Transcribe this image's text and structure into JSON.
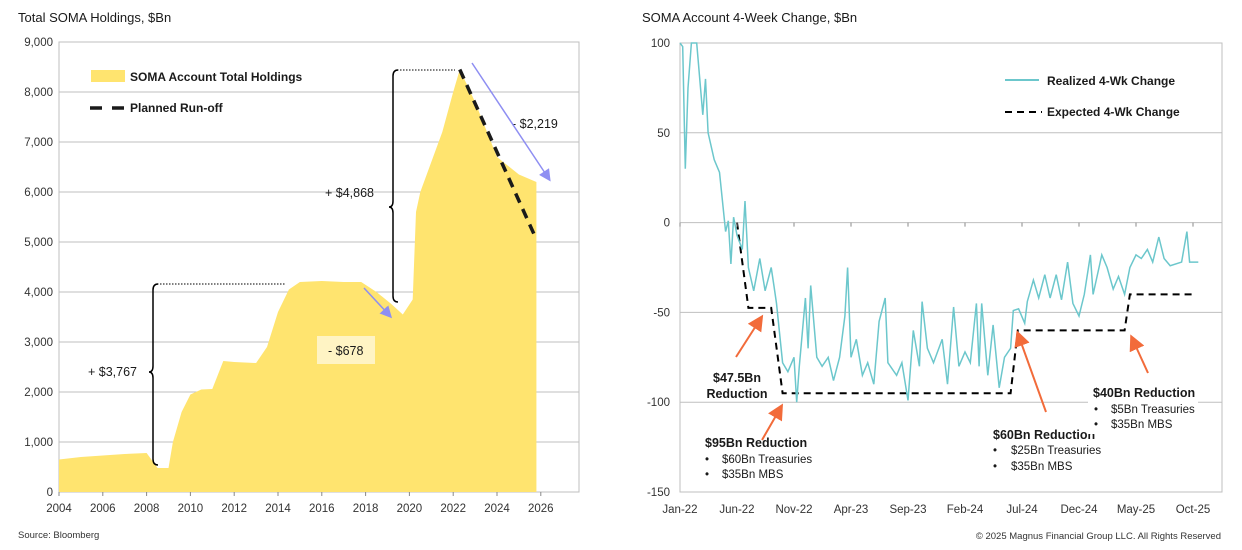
{
  "colors": {
    "holdings_fill": "#FFE46F",
    "realized_line": "#6CC7CC",
    "expected_line": "#000000",
    "runoff_line": "#1a1a1a",
    "purple_arrow": "#8E8EF2",
    "orange_arrow": "#F26B3A",
    "grid": "#BFBFBF"
  },
  "footer": {
    "source": "Source: Bloomberg",
    "copyright": "© 2025 Magnus Financial Group LLC. All Rights Reserved"
  },
  "chart_data": [
    {
      "type": "area",
      "title": "Total SOMA Holdings, $Bn",
      "xlabel": "",
      "ylabel": "",
      "xlim": [
        2004,
        2027.5
      ],
      "ylim": [
        0,
        9000
      ],
      "x_ticks": [
        "2004",
        "2006",
        "2008",
        "2010",
        "2012",
        "2014",
        "2016",
        "2018",
        "2020",
        "2022",
        "2024",
        "2026"
      ],
      "y_ticks": [
        "0",
        "1,000",
        "2,000",
        "3,000",
        "4,000",
        "5,000",
        "6,000",
        "7,000",
        "8,000",
        "9,000"
      ],
      "grid": true,
      "legend_placement": "top-left",
      "series": [
        {
          "name": "SOMA Account Total Holdings",
          "type": "area",
          "x": [
            2004,
            2005,
            2006,
            2007,
            2008,
            2008.3,
            2008.5,
            2009,
            2009.2,
            2009.6,
            2010,
            2010.5,
            2011,
            2011.5,
            2012,
            2013,
            2013.5,
            2014,
            2014.5,
            2015,
            2016,
            2017,
            2017.8,
            2018.5,
            2019.2,
            2019.7,
            2020.15,
            2020.3,
            2020.5,
            2021,
            2021.5,
            2022,
            2022.3,
            2023,
            2024,
            2025,
            2025.8
          ],
          "y": [
            650,
            700,
            730,
            760,
            780,
            600,
            480,
            480,
            1000,
            1600,
            1950,
            2050,
            2060,
            2620,
            2600,
            2580,
            2900,
            3600,
            4050,
            4200,
            4220,
            4200,
            4200,
            4000,
            3750,
            3550,
            3850,
            5600,
            6000,
            6600,
            7200,
            8000,
            8450,
            7800,
            6700,
            6350,
            6200
          ]
        },
        {
          "name": "Planned Run-off",
          "type": "dashed-line",
          "x": [
            2022.3,
            2025.8
          ],
          "y": [
            8450,
            5050
          ]
        }
      ],
      "annotations": [
        {
          "text": "+ $3,767",
          "type": "bracket",
          "from": 480,
          "to": 4220
        },
        {
          "text": "+ $4,868",
          "type": "bracket",
          "from": 3550,
          "to": 8450
        },
        {
          "text": "- $678",
          "type": "arrow"
        },
        {
          "text": "- $2,219",
          "type": "arrow"
        }
      ]
    },
    {
      "type": "line",
      "title": "SOMA Account 4-Week Change, $Bn",
      "xlabel": "",
      "ylabel": "",
      "xlim": [
        "2022-01-01",
        "2025-12-31"
      ],
      "ylim": [
        -150,
        100
      ],
      "x_ticks": [
        "Jan-22",
        "Jun-22",
        "Nov-22",
        "Apr-23",
        "Sep-23",
        "Feb-24",
        "Jul-24",
        "Dec-24",
        "May-25",
        "Oct-25"
      ],
      "y_ticks": [
        "-150",
        "-100",
        "-50",
        "0",
        "50",
        "100"
      ],
      "grid": true,
      "legend_placement": "top-right",
      "series": [
        {
          "name": "Realized 4-Wk Change",
          "x": [
            "2022-01-01",
            "2022-01-08",
            "2022-01-15",
            "2022-01-22",
            "2022-02-01",
            "2022-02-15",
            "2022-03-01",
            "2022-03-08",
            "2022-03-15",
            "2022-04-01",
            "2022-04-15",
            "2022-05-01",
            "2022-05-08",
            "2022-05-15",
            "2022-05-22",
            "2022-06-01",
            "2022-06-15",
            "2022-06-22",
            "2022-07-01",
            "2022-07-15",
            "2022-08-01",
            "2022-08-15",
            "2022-09-01",
            "2022-09-08",
            "2022-09-15",
            "2022-10-01",
            "2022-10-15",
            "2022-11-01",
            "2022-11-08",
            "2022-11-15",
            "2022-12-01",
            "2022-12-08",
            "2022-12-15",
            "2023-01-01",
            "2023-01-15",
            "2023-02-01",
            "2023-02-15",
            "2023-03-01",
            "2023-03-15",
            "2023-03-22",
            "2023-04-01",
            "2023-04-15",
            "2023-05-01",
            "2023-05-15",
            "2023-06-01",
            "2023-06-15",
            "2023-07-01",
            "2023-07-08",
            "2023-08-01",
            "2023-08-15",
            "2023-09-01",
            "2023-09-15",
            "2023-10-01",
            "2023-10-08",
            "2023-10-22",
            "2023-11-08",
            "2023-12-01",
            "2023-12-15",
            "2024-01-01",
            "2024-01-15",
            "2024-02-01",
            "2024-02-15",
            "2024-03-01",
            "2024-03-08",
            "2024-03-15",
            "2024-04-01",
            "2024-04-15",
            "2024-05-01",
            "2024-05-15",
            "2024-06-01",
            "2024-06-08",
            "2024-06-22",
            "2024-07-08",
            "2024-07-15",
            "2024-08-01",
            "2024-08-15",
            "2024-09-01",
            "2024-09-15",
            "2024-10-01",
            "2024-10-15",
            "2024-11-01",
            "2024-11-15",
            "2024-12-01",
            "2024-12-15",
            "2025-01-01",
            "2025-01-08",
            "2025-02-01",
            "2025-02-15",
            "2025-03-01",
            "2025-03-15",
            "2025-04-01",
            "2025-04-15",
            "2025-05-01",
            "2025-05-15",
            "2025-06-01",
            "2025-06-15",
            "2025-07-01",
            "2025-07-15",
            "2025-08-01",
            "2025-09-01",
            "2025-09-15",
            "2025-09-22",
            "2025-10-15"
          ],
          "y": [
            100,
            98,
            30,
            75,
            100,
            100,
            60,
            80,
            50,
            35,
            28,
            -5,
            1,
            -23,
            3,
            -7,
            -15,
            12,
            -25,
            -38,
            -20,
            -38,
            -25,
            -35,
            -45,
            -78,
            -83,
            -75,
            -100,
            -80,
            -42,
            -70,
            -35,
            -75,
            -80,
            -75,
            -88,
            -75,
            -52,
            -25,
            -75,
            -65,
            -85,
            -78,
            -90,
            -55,
            -42,
            -78,
            -85,
            -78,
            -99,
            -60,
            -80,
            -44,
            -70,
            -78,
            -65,
            -90,
            -47,
            -80,
            -72,
            -78,
            -45,
            -80,
            -45,
            -85,
            -57,
            -92,
            -75,
            -70,
            -49,
            -48,
            -56,
            -44,
            -32,
            -42,
            -29,
            -42,
            -29,
            -43,
            -22,
            -45,
            -52,
            -40,
            -18,
            -40,
            -18,
            -25,
            -37,
            -30,
            -40,
            -25,
            -18,
            -20,
            -15,
            -22,
            -8,
            -20,
            -24,
            -22,
            -5,
            -22,
            -22
          ]
        },
        {
          "name": "Expected 4-Wk Change",
          "style": "dashed",
          "x": [
            "2022-06-01",
            "2022-07-01",
            "2022-09-01",
            "2022-10-01",
            "2024-06-01",
            "2024-06-20",
            "2025-04-01",
            "2025-04-15",
            "2025-10-01"
          ],
          "y": [
            0,
            -47.5,
            -47.5,
            -95,
            -95,
            -60,
            -60,
            -40,
            -40
          ]
        }
      ],
      "annotations": [
        {
          "title": "$47.5Bn",
          "title2": "Reduction"
        },
        {
          "title": "$95Bn Reduction",
          "bullets": [
            "$60Bn Treasuries",
            "$35Bn MBS"
          ]
        },
        {
          "title": "$60Bn Reduction",
          "bullets": [
            "$25Bn Treasuries",
            "$35Bn MBS"
          ]
        },
        {
          "title": "$40Bn Reduction",
          "bullets": [
            "$5Bn Treasuries",
            "$35Bn MBS"
          ]
        }
      ]
    }
  ]
}
